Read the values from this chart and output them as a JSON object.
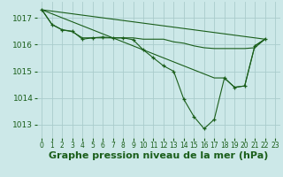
{
  "background_color": "#cce8e8",
  "grid_color": "#aacccc",
  "line_color": "#1a5e1a",
  "xlabel": "Graphe pression niveau de la mer (hPa)",
  "ylim": [
    1012.5,
    1017.6
  ],
  "xlim": [
    -0.5,
    23.5
  ],
  "xticks": [
    0,
    1,
    2,
    3,
    4,
    5,
    6,
    7,
    8,
    9,
    10,
    11,
    12,
    13,
    14,
    15,
    16,
    17,
    18,
    19,
    20,
    21,
    22,
    23
  ],
  "yticks": [
    1013,
    1014,
    1015,
    1016,
    1017
  ],
  "main_x": [
    0,
    1,
    2,
    3,
    4,
    5,
    6,
    7,
    8,
    9,
    10,
    11,
    12,
    13,
    14,
    15,
    16,
    17,
    18,
    19,
    20,
    21,
    22
  ],
  "main_y": [
    1017.3,
    1016.75,
    1016.55,
    1016.5,
    1016.2,
    1016.25,
    1016.28,
    1016.25,
    1016.25,
    1016.18,
    1015.8,
    1015.5,
    1015.2,
    1015.0,
    1013.95,
    1013.3,
    1012.85,
    1013.2,
    1014.75,
    1014.4,
    1014.45,
    1015.95,
    1016.2
  ],
  "line2_x": [
    0,
    1,
    2,
    3,
    4,
    5,
    6,
    7,
    8,
    9,
    10,
    11,
    12,
    13,
    14,
    15,
    16,
    17,
    18,
    19,
    20,
    21,
    22
  ],
  "line2_y": [
    1017.3,
    1016.75,
    1016.55,
    1016.48,
    1016.25,
    1016.25,
    1016.25,
    1016.25,
    1016.25,
    1016.25,
    1016.2,
    1016.2,
    1016.2,
    1016.1,
    1016.05,
    1015.95,
    1015.88,
    1015.85,
    1015.85,
    1015.85,
    1015.85,
    1015.88,
    1016.2
  ],
  "line3_x": [
    0,
    22
  ],
  "line3_y": [
    1017.3,
    1016.2
  ],
  "line4_x": [
    0,
    17,
    18,
    19,
    20,
    21,
    22
  ],
  "line4_y": [
    1017.3,
    1014.75,
    1014.75,
    1014.4,
    1014.45,
    1015.95,
    1016.2
  ]
}
